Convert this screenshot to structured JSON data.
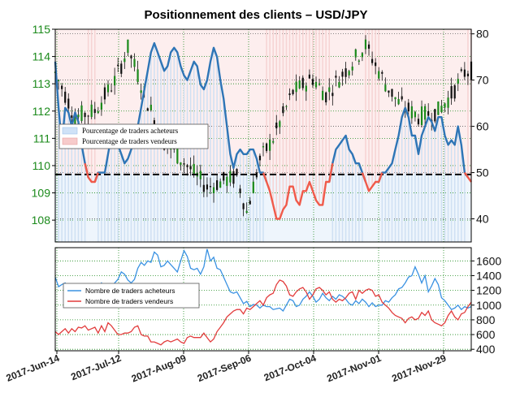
{
  "chart_data": [
    {
      "type": "candlestick+line",
      "title": "Positionnement des clients – USD/JPY",
      "price_axis": {
        "ticks": [
          108,
          109,
          110,
          111,
          112,
          113,
          114,
          115
        ],
        "range": [
          107.2,
          115.0
        ],
        "color": "#1b8a1b"
      },
      "pct_axis": {
        "ticks": [
          40,
          50,
          60,
          70,
          80
        ],
        "range": [
          35,
          81
        ]
      },
      "reference_line": 49.6,
      "legend": [
        "Pourcentage de traders acheteurs",
        "Pourcentage de traders vendeurs"
      ],
      "pct_long_series": {
        "name": "Pourcentage de traders acheteurs",
        "color": "#2e75b6",
        "values": [
          74,
          64,
          56,
          64,
          63,
          60,
          63,
          61,
          56,
          52,
          49,
          48,
          48,
          50,
          50,
          50,
          54,
          58,
          60,
          56,
          54,
          52,
          53,
          55,
          57,
          60,
          64,
          68,
          72,
          76,
          78,
          76,
          74,
          72,
          73,
          76,
          77,
          76,
          73,
          71,
          70,
          72,
          74,
          73,
          69,
          68,
          70,
          74,
          77,
          75,
          70,
          66,
          60,
          54,
          51,
          54,
          55,
          54,
          54,
          55,
          55,
          53,
          50,
          50,
          48,
          46,
          43,
          40,
          40,
          42,
          43,
          47,
          47,
          44,
          43,
          46,
          46,
          48,
          46,
          44,
          43,
          43,
          48,
          48,
          52,
          55,
          56,
          57,
          58,
          55,
          54,
          52,
          52,
          50,
          48,
          46,
          47,
          48,
          48,
          50,
          50,
          51,
          52,
          55,
          58,
          62,
          64,
          62,
          58,
          58,
          54,
          58,
          60,
          62,
          61,
          59,
          62,
          62,
          58,
          56,
          57,
          56,
          60,
          56,
          50,
          49,
          48
        ]
      },
      "ohlc": "approximate daily candles, 2017-Jun-14 to 2017-Dec-14"
    },
    {
      "type": "line",
      "y_axis": {
        "ticks": [
          400,
          600,
          800,
          1000,
          1200,
          1400,
          1600
        ],
        "range": [
          380,
          1780
        ]
      },
      "x_labels": [
        "2017-Jun-14",
        "2017-Jul-12",
        "2017-Aug-09",
        "2017-Sep-06",
        "2017-Oct-04",
        "2017-Nov-01",
        "2017-Nov-29"
      ],
      "legend": [
        "Nombre de traders acheteurs",
        "Nombre de traders vendeurs"
      ],
      "series": [
        {
          "name": "Nombre de traders acheteurs",
          "color": "#3a92e2",
          "values": [
            1380,
            1250,
            1280,
            1300,
            1220,
            1230,
            1180,
            1120,
            1080,
            1180,
            1150,
            1120,
            1120,
            1230,
            1300,
            1200,
            1180,
            1220,
            1300,
            1350,
            1450,
            1420,
            1340,
            1300,
            1350,
            1500,
            1580,
            1540,
            1600,
            1580,
            1720,
            1680,
            1520,
            1540,
            1600,
            1550,
            1500,
            1450,
            1600,
            1740,
            1660,
            1500,
            1480,
            1500,
            1420,
            1520,
            1760,
            1600,
            1650,
            1500,
            1480,
            1380,
            1280,
            1180,
            1160,
            1180,
            1100,
            1020,
            1050,
            980,
            1010,
            1000,
            960,
            1000,
            980,
            980,
            940,
            950,
            960,
            920,
            1000,
            1080,
            1060,
            980,
            1000,
            1080,
            1120,
            1180,
            1120,
            1040,
            1080,
            1160,
            1100,
            1060,
            1120,
            1080,
            1140,
            1120,
            1080,
            1020,
            1000,
            1060,
            1020,
            1080,
            1040,
            980,
            1030,
            980,
            1000,
            1000,
            1060,
            1040,
            1100,
            1140,
            1220,
            1240,
            1300,
            1380,
            1400,
            1520,
            1420,
            1300,
            1400,
            1180,
            1260,
            1360,
            1280,
            1100,
            1060,
            1000,
            940,
            960,
            1000,
            940,
            980,
            960,
            980
          ]
        },
        {
          "name": "Nombre de traders vendeurs",
          "color": "#e23c3c",
          "values": [
            640,
            600,
            640,
            680,
            620,
            680,
            640,
            700,
            690,
            720,
            660,
            680,
            700,
            620,
            720,
            640,
            760,
            720,
            660,
            600,
            600,
            620,
            620,
            640,
            700,
            720,
            600,
            580,
            580,
            500,
            500,
            480,
            460,
            500,
            520,
            500,
            520,
            540,
            500,
            480,
            560,
            580,
            560,
            560,
            560,
            620,
            560,
            500,
            540,
            640,
            700,
            760,
            840,
            880,
            920,
            940,
            940,
            880,
            960,
            940,
            980,
            1020,
            1060,
            1000,
            1100,
            1140,
            1160,
            1280,
            1340,
            1320,
            1260,
            1140,
            1120,
            1180,
            1220,
            1240,
            1180,
            1080,
            1140,
            1220,
            1240,
            1200,
            1140,
            1180,
            1080,
            1040,
            1080,
            1060,
            1100,
            1160,
            1180,
            1080,
            1200,
            1160,
            1200,
            1220,
            1200,
            1120,
            1140,
            1040,
            1000,
            960,
            900,
            860,
            840,
            820,
            760,
            820,
            840,
            800,
            820,
            900,
            860,
            920,
            800,
            760,
            740,
            720,
            760,
            860,
            920,
            840,
            800,
            880,
            900,
            980,
            1040
          ]
        }
      ]
    }
  ]
}
